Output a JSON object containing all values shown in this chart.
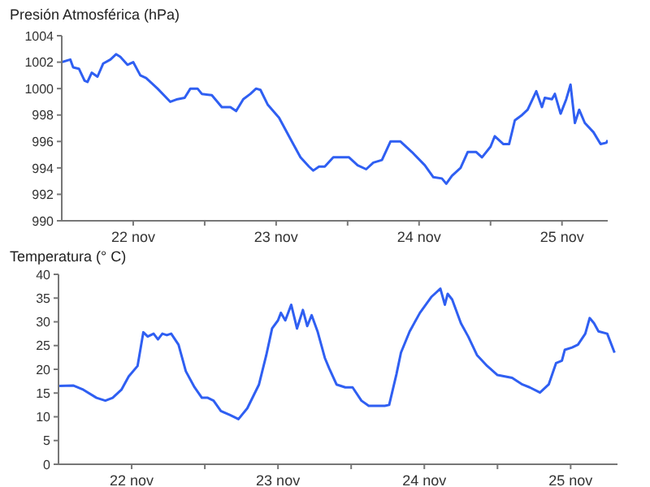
{
  "chart_data": [
    {
      "type": "line",
      "title": "Presión Atmosférica (hPa)",
      "xlim": [
        "--11-21T12:00",
        "--11-25T07:41"
      ],
      "xticks": [
        {
          "value": "--11-22T00:00",
          "label": "22 nov"
        },
        {
          "value": "--11-22T12:00",
          "label": null
        },
        {
          "value": "--11-23T00:00",
          "label": "23 nov"
        },
        {
          "value": "--11-23T12:00",
          "label": null
        },
        {
          "value": "--11-24T00:00",
          "label": "24 nov"
        },
        {
          "value": "--11-24T12:00",
          "label": null
        },
        {
          "value": "--11-25T00:00",
          "label": "25 nov"
        }
      ],
      "ylim": [
        990,
        1004
      ],
      "yticks": [
        990,
        992,
        994,
        996,
        998,
        1000,
        1002,
        1004
      ],
      "x": [
        "--11-21T12:00",
        "--11-21T13:26",
        "--11-21T13:55",
        "--11-21T14:53",
        "--11-21T15:50",
        "--11-21T16:19",
        "--11-21T17:02",
        "--11-21T18:00",
        "--11-21T18:58",
        "--11-21T20:10",
        "--11-21T21:07",
        "--11-21T21:50",
        "--11-21T23:02",
        "--11-22T00:00",
        "--11-22T01:12",
        "--11-22T02:10",
        "--11-22T04:05",
        "--11-22T06:14",
        "--11-22T07:26",
        "--11-22T08:38",
        "--11-22T09:36",
        "--11-22T10:48",
        "--11-22T11:31",
        "--11-22T13:12",
        "--11-22T14:53",
        "--11-22T16:19",
        "--11-22T17:17",
        "--11-22T18:29",
        "--11-22T19:41",
        "--11-22T20:38",
        "--11-22T21:22",
        "--11-22T22:34",
        "--11-23T00:29",
        "--11-23T02:38",
        "--11-23T04:05",
        "--11-23T05:31",
        "--11-23T06:14",
        "--11-23T07:12",
        "--11-23T08:10",
        "--11-23T09:36",
        "--11-23T12:14",
        "--11-23T13:41",
        "--11-23T15:07",
        "--11-23T16:19",
        "--11-23T17:46",
        "--11-23T19:12",
        "--11-23T20:53",
        "--11-23T22:48",
        "--11-24T00:58",
        "--11-24T02:24",
        "--11-24T03:50",
        "--11-24T04:34",
        "--11-24T05:31",
        "--11-24T06:58",
        "--11-24T08:10",
        "--11-24T09:36",
        "--11-24T10:34",
        "--11-24T12:00",
        "--11-24T12:43",
        "--11-24T14:10",
        "--11-24T15:07",
        "--11-24T16:05",
        "--11-24T17:17",
        "--11-24T18:14",
        "--11-24T19:41",
        "--11-24T20:38",
        "--11-24T21:07",
        "--11-24T22:19",
        "--11-24T22:48",
        "--11-24T23:46",
        "--11-25T00:43",
        "--11-25T01:26",
        "--11-25T02:10",
        "--11-25T02:53",
        "--11-25T03:50",
        "--11-25T05:17",
        "--11-25T06:29",
        "--11-25T07:26",
        "--11-25T07:41"
      ],
      "series": [
        {
          "color": "#2f5ff2",
          "values": [
            1002.0,
            1002.2,
            1001.6,
            1001.5,
            1000.6,
            1000.5,
            1001.2,
            1000.9,
            1001.9,
            1002.2,
            1002.6,
            1002.4,
            1001.8,
            1002.0,
            1001.0,
            1000.8,
            1000.0,
            999.0,
            999.2,
            999.3,
            1000.0,
            1000.0,
            999.6,
            999.5,
            998.6,
            998.6,
            998.3,
            999.2,
            999.6,
            1000.0,
            999.9,
            998.8,
            997.8,
            996.0,
            994.8,
            994.1,
            993.8,
            994.1,
            994.1,
            994.8,
            994.8,
            994.2,
            993.9,
            994.4,
            994.6,
            996.0,
            996.0,
            995.2,
            994.2,
            993.3,
            993.2,
            992.8,
            993.4,
            994.0,
            995.2,
            995.2,
            994.8,
            995.6,
            996.4,
            995.8,
            995.8,
            997.6,
            998.0,
            998.4,
            999.8,
            998.6,
            999.3,
            999.2,
            999.6,
            998.1,
            999.2,
            1000.3,
            997.4,
            998.4,
            997.4,
            996.7,
            995.8,
            995.9,
            996.1
          ]
        }
      ]
    },
    {
      "type": "line",
      "title": "Temperatura (° C)",
      "xlim": [
        "--11-21T12:00",
        "--11-25T07:41"
      ],
      "xticks": [
        {
          "value": "--11-22T00:00",
          "label": "22 nov"
        },
        {
          "value": "--11-22T12:00",
          "label": null
        },
        {
          "value": "--11-23T00:00",
          "label": "23 nov"
        },
        {
          "value": "--11-23T12:00",
          "label": null
        },
        {
          "value": "--11-24T00:00",
          "label": "24 nov"
        },
        {
          "value": "--11-24T12:00",
          "label": null
        },
        {
          "value": "--11-25T00:00",
          "label": "25 nov"
        }
      ],
      "ylim": [
        0,
        40
      ],
      "yticks": [
        0,
        5,
        10,
        15,
        20,
        25,
        30,
        35,
        40
      ],
      "x": [
        "--11-21T12:00",
        "--11-21T14:24",
        "--11-21T16:05",
        "--11-21T18:14",
        "--11-21T19:41",
        "--11-21T20:53",
        "--11-21T22:19",
        "--11-21T23:31",
        "--11-22T00:58",
        "--11-22T01:55",
        "--11-22T02:38",
        "--11-22T03:36",
        "--11-22T04:19",
        "--11-22T05:02",
        "--11-22T05:46",
        "--11-22T06:29",
        "--11-22T07:41",
        "--11-22T08:53",
        "--11-22T10:19",
        "--11-22T11:31",
        "--11-22T12:29",
        "--11-22T13:26",
        "--11-22T14:38",
        "--11-22T16:05",
        "--11-22T17:31",
        "--11-22T18:58",
        "--11-22T20:53",
        "--11-22T22:05",
        "--11-22T23:02",
        "--11-23T00:00",
        "--11-23T00:29",
        "--11-23T01:12",
        "--11-23T02:10",
        "--11-23T03:07",
        "--11-23T04:05",
        "--11-23T04:48",
        "--11-23T05:31",
        "--11-23T06:29",
        "--11-23T07:41",
        "--11-23T08:24",
        "--11-23T09:36",
        "--11-23T11:02",
        "--11-23T12:14",
        "--11-23T13:41",
        "--11-23T14:53",
        "--11-23T16:19",
        "--11-23T17:31",
        "--11-23T18:14",
        "--11-23T19:26",
        "--11-23T20:10",
        "--11-23T21:36",
        "--11-23T23:17",
        "--11-24T01:12",
        "--11-24T02:38",
        "--11-24T03:22",
        "--11-24T03:50",
        "--11-24T04:34",
        "--11-24T06:00",
        "--11-24T07:12",
        "--11-24T08:38",
        "--11-24T10:19",
        "--11-24T12:00",
        "--11-24T14:24",
        "--11-24T16:05",
        "--11-24T17:17",
        "--11-24T18:58",
        "--11-24T20:24",
        "--11-24T21:36",
        "--11-24T22:34",
        "--11-24T23:02",
        "--11-25T00:14",
        "--11-25T01:12",
        "--11-25T02:24",
        "--11-25T03:07",
        "--11-25T03:50",
        "--11-25T04:34",
        "--11-25T06:00",
        "--11-25T07:12"
      ],
      "series": [
        {
          "color": "#2f5ff2",
          "values": [
            16.5,
            16.6,
            15.7,
            14.0,
            13.4,
            14.0,
            15.7,
            18.5,
            20.7,
            27.8,
            26.9,
            27.5,
            26.3,
            27.5,
            27.2,
            27.5,
            25.2,
            19.6,
            16.2,
            14.0,
            14.0,
            13.4,
            11.2,
            10.4,
            9.5,
            11.8,
            16.8,
            23.0,
            28.6,
            30.3,
            31.9,
            30.3,
            33.6,
            28.6,
            32.5,
            29.1,
            31.4,
            28.0,
            22.4,
            20.2,
            16.8,
            16.2,
            16.2,
            13.4,
            12.3,
            12.3,
            12.3,
            12.5,
            19.0,
            23.5,
            28.0,
            31.9,
            35.3,
            37.0,
            33.6,
            35.9,
            34.7,
            29.7,
            26.9,
            23.0,
            20.7,
            18.8,
            18.2,
            16.8,
            16.2,
            15.1,
            16.8,
            21.3,
            21.8,
            24.1,
            24.6,
            25.2,
            27.5,
            30.8,
            29.7,
            28.0,
            27.5,
            23.5
          ]
        }
      ]
    }
  ]
}
